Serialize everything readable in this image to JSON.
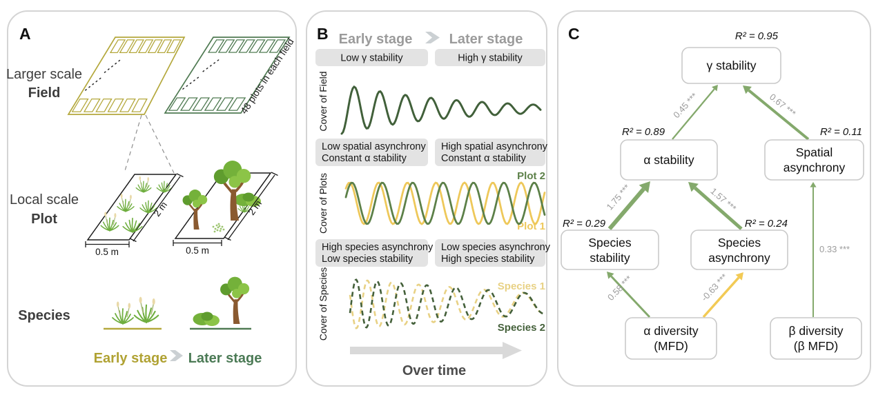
{
  "colors": {
    "field_yellow": "#b4a83c",
    "field_green": "#4f7a52",
    "early_text": "#b0a233",
    "later_text": "#4b7a55",
    "curve_field": "#41603a",
    "curve_plot2": "#5c8048",
    "curve_plot1": "#eec85a",
    "curve_species1": "#e8d184",
    "curve_species2": "#44603a",
    "edge_green": "#84a96c",
    "edge_yellow": "#f2ca55",
    "badge_bg": "#e3e3e3",
    "header_gray": "#9b9b9b",
    "arrow_gray": "#d9d9d9",
    "label_gray": "#9c9c9c"
  },
  "art": {
    "trunk": "#8a5a30",
    "leaf_light": "#8cc447",
    "leaf_mid": "#74b13a",
    "leaf_dark": "#5f9c2e",
    "grass": "#6fae3f",
    "seed": "#e9d9a8",
    "fern": "#9cc470"
  },
  "panelA": {
    "label": "A",
    "scale1_line1": "Larger scale",
    "scale1_line2": "Field",
    "field_note": "48 plots in each field",
    "scale2_line1": "Local scale",
    "scale2_line2": "Plot",
    "dim_w_left": "0.5 m",
    "dim_w_right": "0.5 m",
    "dim_d_left": "2 m",
    "dim_d_right": "2 m",
    "species_label": "Species",
    "early_stage": "Early stage",
    "later_stage": "Later stage"
  },
  "panelB": {
    "label": "B",
    "header_early": "Early stage",
    "header_later": "Later stage",
    "badge_gamma_left": "Low γ stability",
    "badge_gamma_right": "High γ stability",
    "ylabel_field": "Cover of Field",
    "badge_spatial_left_1": "Low spatial asynchrony",
    "badge_spatial_left_2": "Constant α stability",
    "badge_spatial_right_1": "High spatial asynchrony",
    "badge_spatial_right_2": "Constant α stability",
    "ylabel_plots": "Cover of Plots",
    "plot2_label": "Plot 2",
    "plot1_label": "Plot 1",
    "badge_species_left_1": "High species asynchrony",
    "badge_species_left_2": "Low species stability",
    "badge_species_right_1": "Low species asynchrony",
    "badge_species_right_2": "High species stability",
    "ylabel_species": "Cover of Species",
    "species1_label": "Species 1",
    "species2_label": "Species 2",
    "time_label": "Over time"
  },
  "panelC": {
    "label": "C",
    "nodes": {
      "gamma": {
        "label": "γ stability",
        "r2": "R² = 0.95"
      },
      "alpha": {
        "label": "α stability",
        "r2": "R² = 0.89"
      },
      "spatial": {
        "line1": "Spatial",
        "line2": "asynchrony",
        "r2": "R² = 0.11"
      },
      "spstab": {
        "line1": "Species",
        "line2": "stability",
        "r2": "R² = 0.29"
      },
      "spasyn": {
        "line1": "Species",
        "line2": "asynchrony",
        "r2": "R² = 0.24"
      },
      "adiv": {
        "line1": "α diversity",
        "line2": "(MFD)"
      },
      "bdiv": {
        "line1": "β diversity",
        "line2": "(β MFD)"
      }
    },
    "edges": [
      {
        "from": "α stability",
        "to": "γ stability",
        "label": "0.45 ***",
        "color": "#84a96c",
        "width": 2.3
      },
      {
        "from": "Spatial asynchrony",
        "to": "γ stability",
        "label": "0.67 ***",
        "color": "#84a96c",
        "width": 4
      },
      {
        "from": "Species stability",
        "to": "α stability",
        "label": "1.75 ***",
        "color": "#84a96c",
        "width": 6
      },
      {
        "from": "Species asynchrony",
        "to": "α stability",
        "label": "1.57 ***",
        "color": "#84a96c",
        "width": 5
      },
      {
        "from": "α diversity (MFD)",
        "to": "Species stability",
        "label": "0.58 ***",
        "color": "#84a96c",
        "width": 3
      },
      {
        "from": "α diversity (MFD)",
        "to": "Species asynchrony",
        "label": "-0.63 ***",
        "color": "#f2ca55",
        "width": 3.5
      },
      {
        "from": "β diversity (β MFD)",
        "to": "Spatial asynchrony",
        "label": "0.33 ***",
        "color": "#84a96c",
        "width": 2
      }
    ]
  }
}
